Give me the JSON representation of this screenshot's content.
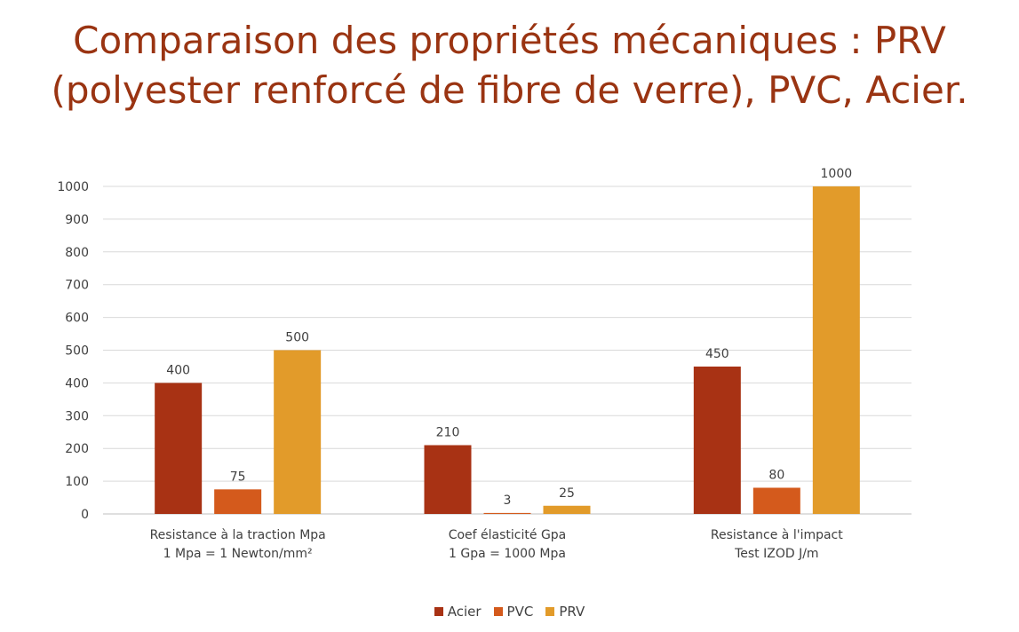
{
  "title": {
    "line1": "Comparaison des propriétés mécaniques : PRV",
    "line2": "(polyester renforcé de fibre de verre), PVC, Acier."
  },
  "chart_data": {
    "type": "bar",
    "title": "Comparaison des propriétés mécaniques : PRV (polyester renforcé de fibre de verre), PVC, Acier.",
    "categories": [
      [
        "Resistance à la traction Mpa",
        "1 Mpa = 1 Newton/mm²"
      ],
      [
        "Coef élasticité Gpa",
        "1 Gpa = 1000 Mpa"
      ],
      [
        "Resistance à l'impact",
        "Test IZOD J/m"
      ]
    ],
    "series": [
      {
        "name": "Acier",
        "color": "#a83214",
        "values": [
          400,
          210,
          450
        ]
      },
      {
        "name": "PVC",
        "color": "#d45a1c",
        "values": [
          75,
          3,
          80
        ]
      },
      {
        "name": "PRV",
        "color": "#e29b2a",
        "values": [
          500,
          25,
          1000
        ]
      }
    ],
    "ylim": [
      0,
      1000
    ],
    "yticks": [
      0,
      100,
      200,
      300,
      400,
      500,
      600,
      700,
      800,
      900,
      1000
    ],
    "grid": true,
    "legend_position": "bottom"
  }
}
